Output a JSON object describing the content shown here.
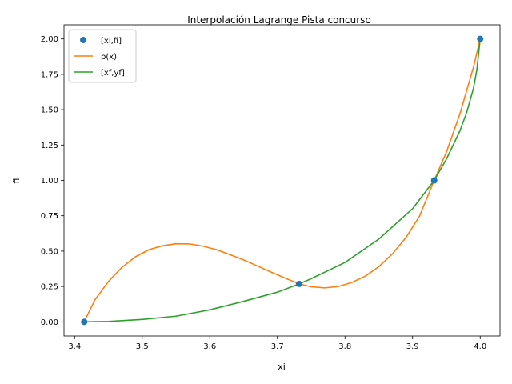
{
  "chart_data": {
    "type": "line",
    "title": "Interpolación Lagrange Pista concurso",
    "xlabel": "xi",
    "ylabel": "fi",
    "xlim": [
      3.3843,
      4.0293
    ],
    "ylim": [
      -0.1,
      2.1
    ],
    "xticks": [
      "3.4",
      "3.5",
      "3.6",
      "3.7",
      "3.8",
      "3.9",
      "4.0"
    ],
    "xtick_values": [
      3.4,
      3.5,
      3.6,
      3.7,
      3.8,
      3.9,
      4.0
    ],
    "yticks": [
      "0.00",
      "0.25",
      "0.50",
      "0.75",
      "1.00",
      "1.25",
      "1.50",
      "1.75",
      "2.00"
    ],
    "ytick_values": [
      0,
      0.25,
      0.5,
      0.75,
      1.0,
      1.25,
      1.5,
      1.75,
      2.0
    ],
    "grid": false,
    "legend_position": "top-left",
    "series": [
      {
        "name": "[xi,fi]",
        "kind": "points",
        "color": "#1f77b4",
        "x": [
          3.4142,
          3.7321,
          3.9319,
          4.0
        ],
        "y": [
          0.0,
          0.268,
          1.0,
          2.0
        ]
      },
      {
        "name": "p(x)",
        "kind": "line",
        "color": "#ff7f0e",
        "x": [
          3.4142,
          3.43,
          3.45,
          3.47,
          3.49,
          3.51,
          3.53,
          3.55,
          3.57,
          3.59,
          3.61,
          3.63,
          3.65,
          3.67,
          3.69,
          3.71,
          3.7321,
          3.75,
          3.77,
          3.79,
          3.81,
          3.83,
          3.85,
          3.87,
          3.89,
          3.91,
          3.9319,
          3.95,
          3.97,
          3.99,
          4.0
        ],
        "y": [
          0.0,
          0.155,
          0.285,
          0.385,
          0.46,
          0.51,
          0.538,
          0.552,
          0.551,
          0.535,
          0.51,
          0.475,
          0.438,
          0.396,
          0.353,
          0.312,
          0.268,
          0.248,
          0.24,
          0.25,
          0.278,
          0.323,
          0.39,
          0.48,
          0.595,
          0.745,
          1.0,
          1.2,
          1.47,
          1.8,
          2.0
        ]
      },
      {
        "name": "[xf,yf]",
        "kind": "line",
        "color": "#2ca02c",
        "x": [
          3.4142,
          3.45,
          3.5,
          3.55,
          3.6,
          3.65,
          3.7,
          3.7321,
          3.75,
          3.8,
          3.85,
          3.9,
          3.9319,
          3.95,
          3.97,
          3.98,
          3.99,
          3.995,
          4.0
        ],
        "y": [
          0.0,
          0.003,
          0.017,
          0.04,
          0.085,
          0.145,
          0.21,
          0.268,
          0.305,
          0.42,
          0.585,
          0.8,
          1.0,
          1.15,
          1.35,
          1.48,
          1.65,
          1.78,
          2.0
        ]
      }
    ]
  }
}
